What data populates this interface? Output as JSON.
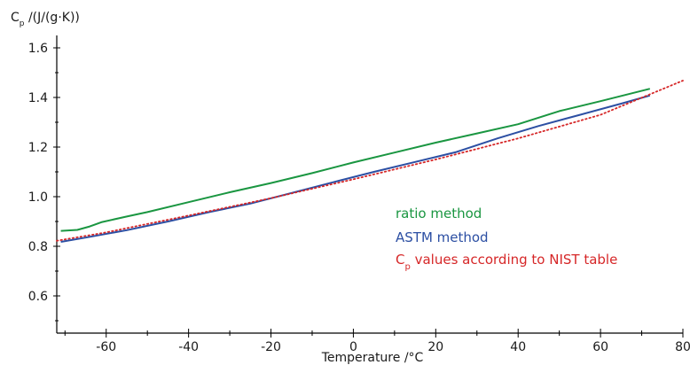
{
  "chart_data": {
    "type": "line",
    "title": "",
    "ylabel": {
      "main": "C",
      "sub": "p",
      "rest": " /(J/(g·K))"
    },
    "xlabel": "Temperature /°C",
    "xlim": [
      -72,
      80
    ],
    "ylim": [
      0.45,
      1.65
    ],
    "xticks": [
      -60,
      -40,
      -20,
      0,
      20,
      40,
      60,
      80
    ],
    "yticks": [
      0.6,
      0.8,
      1.0,
      1.2,
      1.4,
      1.6
    ],
    "ytick_labels": [
      "0.6",
      "0.8",
      "1.0",
      "1.2",
      "1.4",
      "1.6"
    ],
    "grid": false,
    "legend_position": "center-right",
    "series": [
      {
        "name": "ratio method",
        "color": "#1a9641",
        "style": "solid",
        "x": [
          -71,
          -67,
          -64,
          -61,
          -55,
          -50,
          -40,
          -30,
          -20,
          -10,
          0,
          10,
          20,
          30,
          40,
          50,
          60,
          72
        ],
        "y": [
          0.862,
          0.866,
          0.88,
          0.898,
          0.92,
          0.938,
          0.978,
          1.018,
          1.055,
          1.095,
          1.138,
          1.178,
          1.218,
          1.255,
          1.292,
          1.345,
          1.385,
          1.435
        ]
      },
      {
        "name": "ASTM method",
        "color": "#2c4fa3",
        "style": "solid",
        "x": [
          -71,
          -65,
          -55,
          -45,
          -35,
          -25,
          -15,
          -5,
          5,
          15,
          25,
          35,
          45,
          55,
          65,
          72
        ],
        "y": [
          0.818,
          0.835,
          0.865,
          0.9,
          0.938,
          0.972,
          1.015,
          1.058,
          1.1,
          1.14,
          1.18,
          1.235,
          1.285,
          1.33,
          1.375,
          1.408
        ]
      },
      {
        "name": {
          "main": "C",
          "sub": "p",
          "rest": " values according to NIST table"
        },
        "color": "#d62728",
        "style": "dotted",
        "x": [
          -72,
          -60,
          -40,
          -20,
          0,
          20,
          40,
          60,
          80
        ],
        "y": [
          0.822,
          0.856,
          0.924,
          0.994,
          1.07,
          1.15,
          1.235,
          1.33,
          1.468
        ]
      }
    ]
  }
}
